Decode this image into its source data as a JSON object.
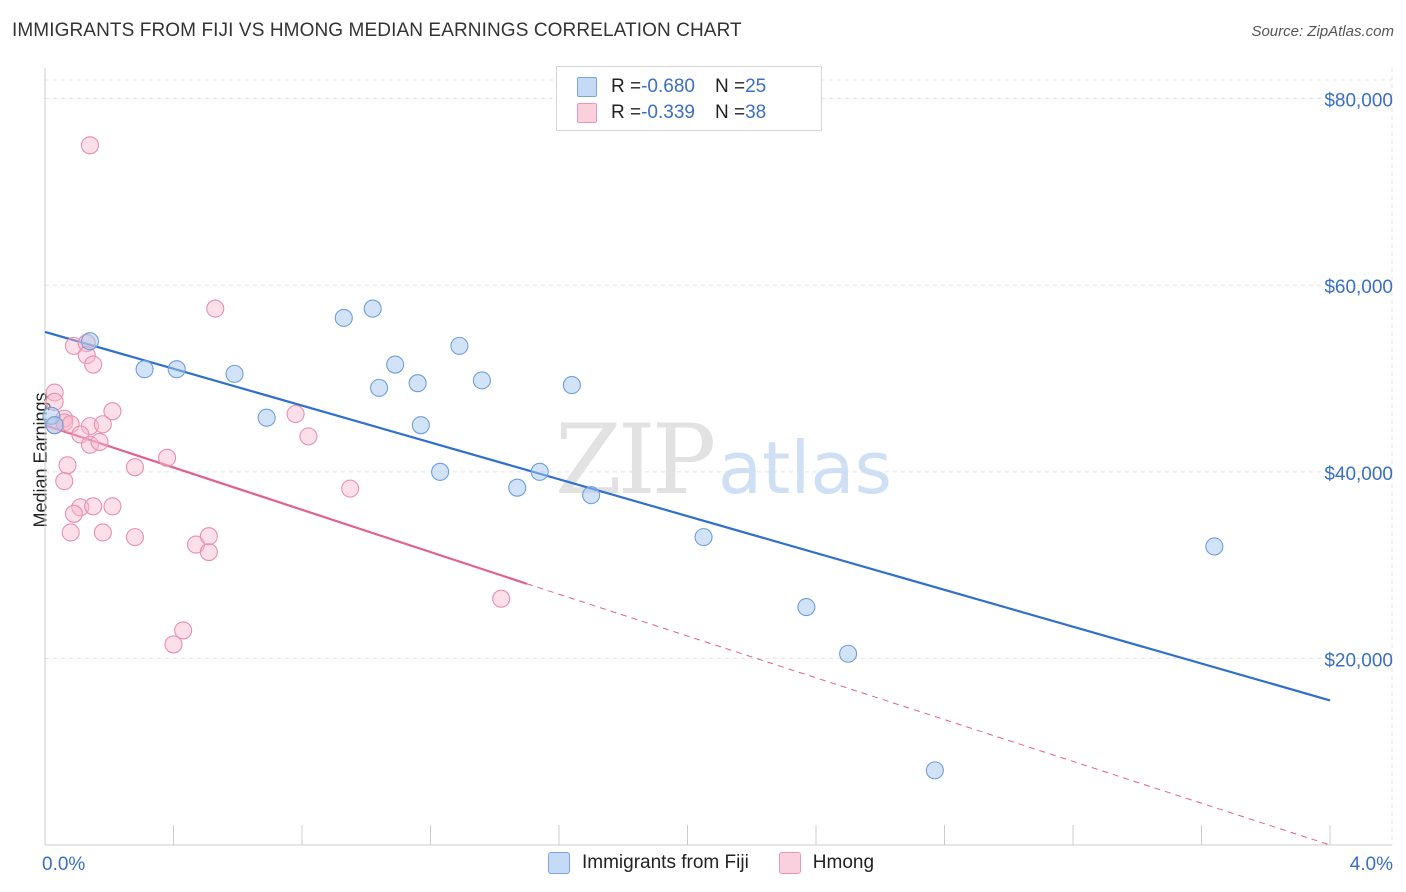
{
  "header": {
    "title": "IMMIGRANTS FROM FIJI VS HMONG MEDIAN EARNINGS CORRELATION CHART",
    "source": "Source: ZipAtlas.com"
  },
  "watermark": {
    "zip": "ZIP",
    "atlas": "atlas"
  },
  "legend": {
    "rows": [
      {
        "r_label": "R = ",
        "r_value": "-0.680",
        "n_label": "N = ",
        "n_value": "25"
      },
      {
        "r_label": "R = ",
        "r_value": "-0.339",
        "n_label": "N = ",
        "n_value": "38"
      }
    ]
  },
  "chart_data": {
    "type": "scatter",
    "title": "IMMIGRANTS FROM FIJI VS HMONG MEDIAN EARNINGS CORRELATION CHART",
    "xlabel": "",
    "ylabel": "Median Earnings",
    "xlim": [
      0,
      4
    ],
    "ylim": [
      0,
      82000
    ],
    "x_tick_labels": [
      "0.0%",
      "4.0%"
    ],
    "y_ticks": [
      20000,
      40000,
      60000,
      80000
    ],
    "y_tick_labels": [
      "$20,000",
      "$40,000",
      "$60,000",
      "$80,000"
    ],
    "grid": true,
    "legend_position": "top-center",
    "colors": {
      "fiji_fill": "#a8c8f0",
      "fiji_stroke": "#6f9fd8",
      "fiji_line": "#2f6fcf",
      "hmong_fill": "#f8b8cc",
      "hmong_stroke": "#e890ad",
      "hmong_line": "#e0628d",
      "tick_label": "#3a6fc4"
    },
    "series": [
      {
        "name": "Immigrants from Fiji",
        "r": -0.68,
        "n": 25,
        "trend": {
          "x0": 0.0,
          "y0": 55000,
          "x1": 4.0,
          "y1": 15500
        },
        "points": [
          {
            "x": 0.02,
            "y": 46000
          },
          {
            "x": 0.03,
            "y": 45000
          },
          {
            "x": 0.14,
            "y": 54000
          },
          {
            "x": 0.31,
            "y": 51000
          },
          {
            "x": 0.41,
            "y": 51000
          },
          {
            "x": 0.59,
            "y": 50500
          },
          {
            "x": 0.69,
            "y": 45800
          },
          {
            "x": 0.93,
            "y": 56500
          },
          {
            "x": 1.02,
            "y": 57500
          },
          {
            "x": 1.09,
            "y": 51500
          },
          {
            "x": 1.04,
            "y": 49000
          },
          {
            "x": 1.16,
            "y": 49500
          },
          {
            "x": 1.17,
            "y": 45000
          },
          {
            "x": 1.29,
            "y": 53500
          },
          {
            "x": 1.23,
            "y": 40000
          },
          {
            "x": 1.36,
            "y": 49800
          },
          {
            "x": 1.47,
            "y": 38300
          },
          {
            "x": 1.54,
            "y": 40000
          },
          {
            "x": 1.64,
            "y": 49300
          },
          {
            "x": 1.7,
            "y": 37500
          },
          {
            "x": 2.05,
            "y": 33000
          },
          {
            "x": 2.37,
            "y": 25500
          },
          {
            "x": 2.5,
            "y": 20500
          },
          {
            "x": 2.77,
            "y": 8000
          },
          {
            "x": 3.64,
            "y": 32000
          }
        ]
      },
      {
        "name": "Hmong",
        "r": -0.339,
        "n": 38,
        "trend": {
          "x0": 0.0,
          "y0": 45000,
          "x1": 1.5,
          "y1": 28000
        },
        "trend_extension": {
          "x0": 1.5,
          "y0": 28000,
          "x1": 4.0,
          "y1": 0
        },
        "points": [
          {
            "x": 0.14,
            "y": 75000
          },
          {
            "x": 0.53,
            "y": 57500
          },
          {
            "x": 0.09,
            "y": 53500
          },
          {
            "x": 0.13,
            "y": 53800
          },
          {
            "x": 0.13,
            "y": 52500
          },
          {
            "x": 0.15,
            "y": 51500
          },
          {
            "x": 0.03,
            "y": 48500
          },
          {
            "x": 0.03,
            "y": 47500
          },
          {
            "x": 0.06,
            "y": 45700
          },
          {
            "x": 0.03,
            "y": 45000
          },
          {
            "x": 0.06,
            "y": 45300
          },
          {
            "x": 0.08,
            "y": 45100
          },
          {
            "x": 0.14,
            "y": 44900
          },
          {
            "x": 0.18,
            "y": 45100
          },
          {
            "x": 0.11,
            "y": 44000
          },
          {
            "x": 0.21,
            "y": 46500
          },
          {
            "x": 0.14,
            "y": 42900
          },
          {
            "x": 0.17,
            "y": 43200
          },
          {
            "x": 0.38,
            "y": 41500
          },
          {
            "x": 0.07,
            "y": 40700
          },
          {
            "x": 0.28,
            "y": 40500
          },
          {
            "x": 0.06,
            "y": 39000
          },
          {
            "x": 0.11,
            "y": 36200
          },
          {
            "x": 0.09,
            "y": 35500
          },
          {
            "x": 0.15,
            "y": 36300
          },
          {
            "x": 0.21,
            "y": 36300
          },
          {
            "x": 0.08,
            "y": 33500
          },
          {
            "x": 0.18,
            "y": 33500
          },
          {
            "x": 0.28,
            "y": 33000
          },
          {
            "x": 0.47,
            "y": 32200
          },
          {
            "x": 0.51,
            "y": 31400
          },
          {
            "x": 0.51,
            "y": 33100
          },
          {
            "x": 0.78,
            "y": 46200
          },
          {
            "x": 0.82,
            "y": 43800
          },
          {
            "x": 0.95,
            "y": 38200
          },
          {
            "x": 0.43,
            "y": 23000
          },
          {
            "x": 0.4,
            "y": 21500
          },
          {
            "x": 1.42,
            "y": 26400
          }
        ]
      }
    ]
  }
}
